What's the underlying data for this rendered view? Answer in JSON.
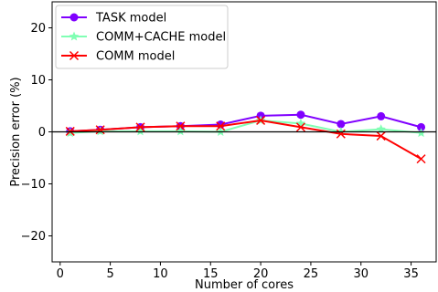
{
  "chart_data": {
    "type": "line",
    "xlabel": "Number of cores",
    "ylabel": "Precision error (%)",
    "xlim": [
      -0.8,
      37.5
    ],
    "ylim": [
      -25,
      25
    ],
    "xticks": [
      0,
      5,
      10,
      15,
      20,
      25,
      30,
      35
    ],
    "yticks": [
      -20,
      -10,
      0,
      10,
      20
    ],
    "zero_line": true,
    "grid": false,
    "legend_position": "top-left",
    "series": [
      {
        "name": "TASK model",
        "color": "#8000ff",
        "marker": "circle",
        "x": [
          1,
          4,
          8,
          12,
          16,
          20,
          24,
          28,
          32,
          36
        ],
        "values": [
          0.1,
          0.4,
          0.9,
          1.1,
          1.4,
          3.1,
          3.3,
          1.5,
          3.0,
          0.9
        ]
      },
      {
        "name": "COMM+CACHE model",
        "color": "#80ffb4",
        "marker": "star",
        "x": [
          1,
          4,
          8,
          12,
          16,
          20,
          24,
          28,
          32,
          36
        ],
        "values": [
          -0.2,
          0.1,
          0.1,
          0.1,
          0.0,
          2.2,
          1.6,
          0.0,
          0.5,
          -0.2
        ]
      },
      {
        "name": "COMM model",
        "color": "#ff0000",
        "marker": "x",
        "x": [
          1,
          4,
          8,
          12,
          16,
          20,
          24,
          28,
          32,
          36
        ],
        "values": [
          0.1,
          0.4,
          0.9,
          1.1,
          1.1,
          2.2,
          0.9,
          -0.4,
          -0.8,
          -5.2
        ]
      }
    ]
  }
}
